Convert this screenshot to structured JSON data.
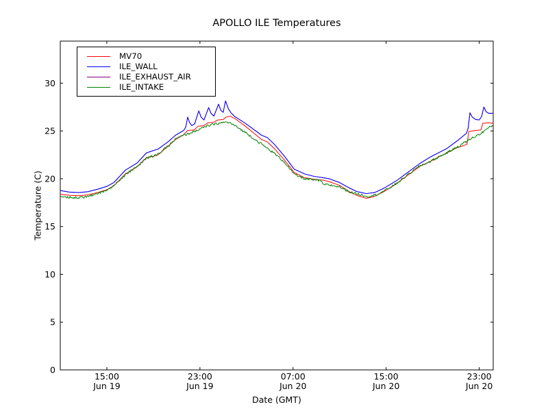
{
  "figure": {
    "title": "APOLLO ILE Temperatures"
  },
  "axes": {
    "xlabel": "Date (GMT)",
    "ylabel": "Temperature (C)",
    "yticks": [
      0,
      5,
      10,
      15,
      20,
      25,
      30
    ],
    "xticks": [
      {
        "hour": 15,
        "line1": "15:00",
        "line2": "Jun 19"
      },
      {
        "hour": 23,
        "line1": "23:00",
        "line2": "Jun 19"
      },
      {
        "hour": 31,
        "line1": "07:00",
        "line2": "Jun 20"
      },
      {
        "hour": 39,
        "line1": "15:00",
        "line2": "Jun 20"
      },
      {
        "hour": 47,
        "line1": "23:00",
        "line2": "Jun 20"
      }
    ]
  },
  "legend": {
    "entries": [
      {
        "label": "MV70"
      },
      {
        "label": "ILE_WALL"
      },
      {
        "label": "ILE_EXHAUST_AIR"
      },
      {
        "label": "ILE_INTAKE"
      }
    ]
  },
  "chart_data": {
    "type": "line",
    "title": "APOLLO ILE Temperatures",
    "xlabel": "Date (GMT)",
    "ylabel": "Temperature (C)",
    "x_unit": "hours since Jun 19 00:00 GMT",
    "xlim": [
      11.0,
      48.2
    ],
    "ylim": [
      0,
      34.4
    ],
    "grid": false,
    "legend_position": "upper left",
    "series": [
      {
        "name": "MV70",
        "color": "#ff0000",
        "noise_amplitude": 0,
        "points": [
          [
            11.0,
            18.37
          ],
          [
            11.8,
            18.27
          ],
          [
            12.6,
            18.22
          ],
          [
            13.4,
            18.32
          ],
          [
            14.2,
            18.55
          ],
          [
            15.0,
            18.85
          ],
          [
            15.6,
            19.25
          ],
          [
            16.6,
            20.5
          ],
          [
            17.6,
            21.25
          ],
          [
            18.4,
            22.2
          ],
          [
            19.0,
            22.35
          ],
          [
            19.4,
            22.5
          ],
          [
            20.3,
            23.45
          ],
          [
            20.9,
            24.1
          ],
          [
            21.6,
            24.6
          ],
          [
            21.95,
            25.05
          ],
          [
            22.5,
            25.1
          ],
          [
            22.85,
            25.5
          ],
          [
            23.3,
            25.55
          ],
          [
            23.7,
            25.85
          ],
          [
            24.15,
            25.9
          ],
          [
            24.55,
            26.15
          ],
          [
            25.0,
            26.2
          ],
          [
            25.25,
            26.45
          ],
          [
            25.6,
            26.55
          ],
          [
            26.0,
            26.3
          ],
          [
            26.9,
            25.5
          ],
          [
            27.8,
            24.6
          ],
          [
            28.3,
            24.1
          ],
          [
            28.8,
            23.85
          ],
          [
            29.4,
            23.15
          ],
          [
            30.3,
            21.9
          ],
          [
            31.1,
            20.65
          ],
          [
            32.0,
            20.1
          ],
          [
            32.8,
            19.95
          ],
          [
            33.6,
            19.85
          ],
          [
            34.1,
            19.7
          ],
          [
            35.0,
            19.3
          ],
          [
            35.9,
            18.6
          ],
          [
            36.5,
            18.25
          ],
          [
            37.3,
            17.95
          ],
          [
            38.0,
            18.15
          ],
          [
            38.8,
            18.65
          ],
          [
            39.9,
            19.5
          ],
          [
            40.9,
            20.4
          ],
          [
            41.9,
            21.3
          ],
          [
            42.7,
            21.75
          ],
          [
            43.4,
            22.2
          ],
          [
            44.2,
            22.7
          ],
          [
            45.0,
            23.2
          ],
          [
            45.95,
            23.6
          ],
          [
            46.1,
            24.95
          ],
          [
            46.7,
            25.05
          ],
          [
            47.15,
            25.1
          ],
          [
            47.3,
            25.8
          ],
          [
            47.8,
            25.85
          ],
          [
            48.2,
            25.8
          ]
        ]
      },
      {
        "name": "ILE_WALL",
        "color": "#0000ff",
        "noise_amplitude": 0,
        "points": [
          [
            11.0,
            18.77
          ],
          [
            11.8,
            18.6
          ],
          [
            12.6,
            18.55
          ],
          [
            13.4,
            18.65
          ],
          [
            14.2,
            18.9
          ],
          [
            15.0,
            19.2
          ],
          [
            15.6,
            19.6
          ],
          [
            16.6,
            20.9
          ],
          [
            17.6,
            21.65
          ],
          [
            18.4,
            22.7
          ],
          [
            19.0,
            22.95
          ],
          [
            19.4,
            23.1
          ],
          [
            20.3,
            23.9
          ],
          [
            20.9,
            24.55
          ],
          [
            21.6,
            25.05
          ],
          [
            21.78,
            25.4
          ],
          [
            21.95,
            26.45
          ],
          [
            22.1,
            25.9
          ],
          [
            22.3,
            25.55
          ],
          [
            22.55,
            25.75
          ],
          [
            22.9,
            27.1
          ],
          [
            23.1,
            26.45
          ],
          [
            23.35,
            26.15
          ],
          [
            23.75,
            27.45
          ],
          [
            23.95,
            26.85
          ],
          [
            24.2,
            26.55
          ],
          [
            24.6,
            27.8
          ],
          [
            24.8,
            27.15
          ],
          [
            25.0,
            26.95
          ],
          [
            25.2,
            28.15
          ],
          [
            25.45,
            27.3
          ],
          [
            25.7,
            26.85
          ],
          [
            26.0,
            26.5
          ],
          [
            26.9,
            25.8
          ],
          [
            27.8,
            25.0
          ],
          [
            28.3,
            24.55
          ],
          [
            28.8,
            24.3
          ],
          [
            29.4,
            23.6
          ],
          [
            30.3,
            22.3
          ],
          [
            31.1,
            21.0
          ],
          [
            32.0,
            20.5
          ],
          [
            32.8,
            20.25
          ],
          [
            33.6,
            20.1
          ],
          [
            34.1,
            20.0
          ],
          [
            35.0,
            19.6
          ],
          [
            35.9,
            19.0
          ],
          [
            36.5,
            18.65
          ],
          [
            37.3,
            18.45
          ],
          [
            38.0,
            18.55
          ],
          [
            38.8,
            19.0
          ],
          [
            39.9,
            19.8
          ],
          [
            40.9,
            20.7
          ],
          [
            41.9,
            21.6
          ],
          [
            42.7,
            22.2
          ],
          [
            43.4,
            22.65
          ],
          [
            44.2,
            23.15
          ],
          [
            45.2,
            24.05
          ],
          [
            45.9,
            24.75
          ],
          [
            46.05,
            25.3
          ],
          [
            46.2,
            26.9
          ],
          [
            46.4,
            26.45
          ],
          [
            46.7,
            26.2
          ],
          [
            47.0,
            26.15
          ],
          [
            47.2,
            26.5
          ],
          [
            47.4,
            27.5
          ],
          [
            47.6,
            27.0
          ],
          [
            47.8,
            26.85
          ],
          [
            48.2,
            26.85
          ]
        ]
      },
      {
        "name": "ILE_EXHAUST_AIR",
        "color": "#800080",
        "noise_amplitude": 0,
        "points_same_as": "ILE_WALL",
        "note": "line coincides with ILE_WALL and is hidden beneath it in the plot"
      },
      {
        "name": "ILE_INTAKE",
        "color": "#008000",
        "noise_amplitude": 0.12,
        "points": [
          [
            11.0,
            18.12
          ],
          [
            12.0,
            18.05
          ],
          [
            13.0,
            18.05
          ],
          [
            13.8,
            18.3
          ],
          [
            15.0,
            18.8
          ],
          [
            15.6,
            19.25
          ],
          [
            16.6,
            20.45
          ],
          [
            17.6,
            21.25
          ],
          [
            18.4,
            22.15
          ],
          [
            19.4,
            22.55
          ],
          [
            20.3,
            23.45
          ],
          [
            20.9,
            24.15
          ],
          [
            21.6,
            24.55
          ],
          [
            22.0,
            24.7
          ],
          [
            22.9,
            25.15
          ],
          [
            23.7,
            25.55
          ],
          [
            24.4,
            25.75
          ],
          [
            25.1,
            25.9
          ],
          [
            25.5,
            25.9
          ],
          [
            26.0,
            25.55
          ],
          [
            26.9,
            24.85
          ],
          [
            27.8,
            24.05
          ],
          [
            28.6,
            23.35
          ],
          [
            29.4,
            22.65
          ],
          [
            30.3,
            21.7
          ],
          [
            31.1,
            20.45
          ],
          [
            32.0,
            20.0
          ],
          [
            32.9,
            19.85
          ],
          [
            33.4,
            19.8
          ],
          [
            33.55,
            19.4
          ],
          [
            34.1,
            19.35
          ],
          [
            35.0,
            19.15
          ],
          [
            35.9,
            18.6
          ],
          [
            36.6,
            18.4
          ],
          [
            37.4,
            18.15
          ],
          [
            38.1,
            18.3
          ],
          [
            38.8,
            18.7
          ],
          [
            39.9,
            19.5
          ],
          [
            40.9,
            20.45
          ],
          [
            41.9,
            21.35
          ],
          [
            42.7,
            21.75
          ],
          [
            43.4,
            22.2
          ],
          [
            44.2,
            22.7
          ],
          [
            45.0,
            23.25
          ],
          [
            45.9,
            23.9
          ],
          [
            46.6,
            24.4
          ],
          [
            47.1,
            24.7
          ],
          [
            47.7,
            25.25
          ],
          [
            48.2,
            25.6
          ]
        ]
      }
    ]
  }
}
